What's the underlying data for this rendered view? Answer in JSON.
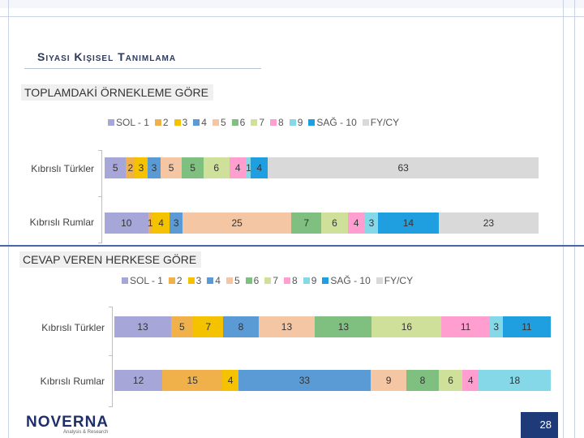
{
  "page": {
    "title": "Sıyası Kışısel Tanımlama",
    "page_number": "28",
    "logo_text": "NOVERNA",
    "logo_subtext": "Analysis & Research"
  },
  "colors": {
    "SOL - 1": "#a6a6d9",
    "2": "#f0b14a",
    "3": "#f5c200",
    "4": "#5b9bd5",
    "5": "#f5c6a3",
    "6": "#7fbf7f",
    "7": "#cfe09a",
    "8": "#ff9ecf",
    "9": "#85d8e8",
    "SAĞ - 10": "#1f9fe0",
    "FY/CY": "#d9d9d9"
  },
  "chart_data": [
    {
      "type": "bar",
      "orientation": "horizontal",
      "stacked": true,
      "title": "TOPLAMDAKİ ÖRNEKLEME GÖRE",
      "legend_position": "top",
      "series_names": [
        "SOL - 1",
        "2",
        "3",
        "4",
        "5",
        "6",
        "7",
        "8",
        "9",
        "SAĞ - 10",
        "FY/CY"
      ],
      "categories": [
        "Kıbrıslı Türkler",
        "Kıbrıslı Rumlar"
      ],
      "rows": [
        {
          "category": "Kıbrıslı Türkler",
          "values": [
            5,
            2,
            3,
            3,
            5,
            5,
            6,
            4,
            1,
            4,
            63
          ]
        },
        {
          "category": "Kıbrıslı Rumlar",
          "values": [
            10,
            1,
            4,
            3,
            25,
            7,
            6,
            4,
            3,
            14,
            23
          ]
        }
      ]
    },
    {
      "type": "bar",
      "orientation": "horizontal",
      "stacked": true,
      "title": "CEVAP VEREN HERKESE GÖRE",
      "legend_position": "top",
      "series_names": [
        "SOL - 1",
        "2",
        "3",
        "4",
        "5",
        "6",
        "7",
        "8",
        "9",
        "SAĞ - 10",
        "FY/CY"
      ],
      "categories": [
        "Kıbrıslı Türkler",
        "Kıbrıslı Rumlar"
      ],
      "rows": [
        {
          "category": "Kıbrıslı Türkler",
          "values": [
            13,
            5,
            7,
            8,
            13,
            13,
            16,
            11,
            3,
            11,
            0
          ]
        },
        {
          "category": "Kıbrıslı Rumlar",
          "values": [
            12,
            15,
            4,
            33,
            9,
            8,
            6,
            4,
            18,
            0,
            0
          ]
        }
      ]
    }
  ]
}
